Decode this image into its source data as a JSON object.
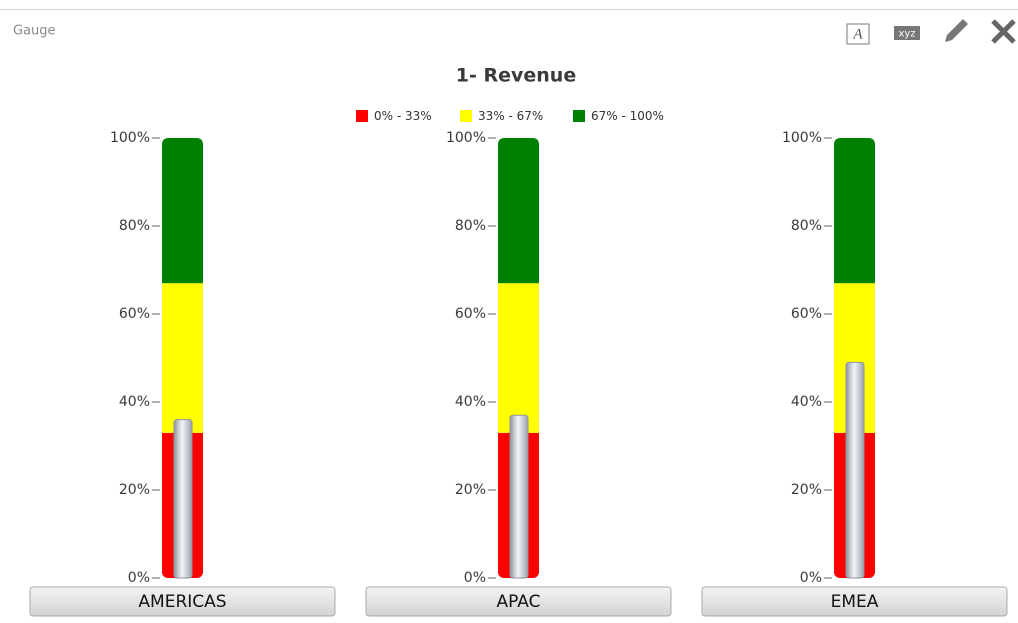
{
  "panel": {
    "title": "Gauge",
    "icons": [
      "A",
      "xyz"
    ]
  },
  "chart_data": {
    "type": "gauge",
    "title": "1- Revenue",
    "categories": [
      "AMERICAS",
      "APAC",
      "EMEA"
    ],
    "values": [
      36,
      37,
      49
    ],
    "needle_color": "#c3c8d1",
    "ranges": [
      {
        "name": "0% - 33%",
        "color": "#ff0000",
        "from": 0,
        "to": 33
      },
      {
        "name": "33% - 67%",
        "color": "#ffff00",
        "from": 33,
        "to": 67
      },
      {
        "name": "67% - 100%",
        "color": "#008000",
        "from": 67,
        "to": 100
      }
    ],
    "ylim": [
      0,
      100
    ],
    "yticks": [
      {
        "value": 0,
        "label": "0%"
      },
      {
        "value": 20,
        "label": "20%"
      },
      {
        "value": 40,
        "label": "40%"
      },
      {
        "value": 60,
        "label": "60%"
      },
      {
        "value": 80,
        "label": "80%"
      },
      {
        "value": 100,
        "label": "100%"
      }
    ],
    "legend": "top"
  }
}
